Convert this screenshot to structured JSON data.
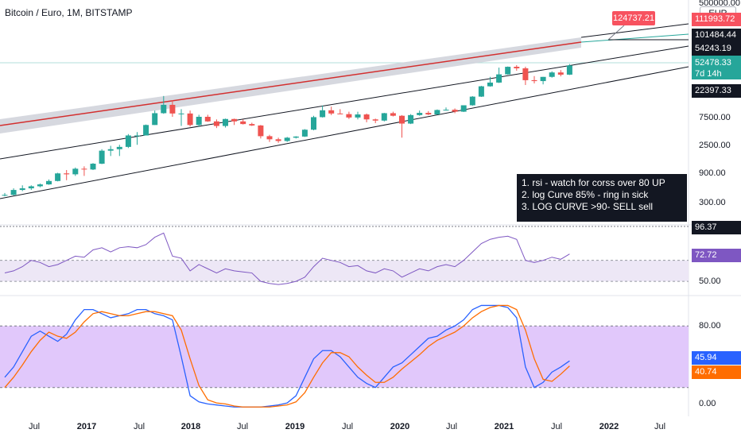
{
  "chart_title": "Bitcoin / Euro, 1M, BITSTAMP",
  "currency": "EUR",
  "colors": {
    "up": "#26a69a",
    "down": "#ef5350",
    "rsi_line": "#7e57c2",
    "rsi_band": "#ede7f6",
    "stoch_k": "#2962ff",
    "stoch_d": "#ff6d00",
    "stoch_band": "#e1c8fb",
    "channel": "#131722",
    "red_curve": "#d32f2f"
  },
  "price_labels": {
    "p1": "111993.72",
    "p2": "101484.44",
    "p3": "54243.19",
    "p4": "52478.33",
    "p4_sub": "7d 14h",
    "p5": "22397.33",
    "callout": "124737.21"
  },
  "axis": {
    "price_ticks": [
      "500000.00",
      "7500.00",
      "2500.00",
      "900.00",
      "300.00"
    ],
    "rsi_ticks": [
      "50.00"
    ],
    "rsi_labels": [
      "96.37",
      "72.72"
    ],
    "stoch_ticks": [
      "80.00",
      "0.00"
    ],
    "stoch_labels": [
      "45.94",
      "40.74"
    ],
    "x_ticks": [
      "Jul",
      "2017",
      "Jul",
      "2018",
      "Jul",
      "2019",
      "Jul",
      "2020",
      "Jul",
      "2021",
      "Jul",
      "2022",
      "Jul"
    ]
  },
  "note": {
    "line1": "1. rsi - watch for corss over 80 UP",
    "line2": "2. log Curve 85% - ring in sick",
    "line3": "3. LOG CURVE >90- SELL sell"
  },
  "chart_data": [
    {
      "type": "candlestick",
      "title": "Bitcoin / Euro, 1M, BITSTAMP",
      "scale": "log",
      "x_categories": [
        "2016-06",
        "2016-07",
        "2016-08",
        "2016-09",
        "2016-10",
        "2016-11",
        "2016-12",
        "2017-01",
        "2017-02",
        "2017-03",
        "2017-04",
        "2017-05",
        "2017-06",
        "2017-07",
        "2017-08",
        "2017-09",
        "2017-10",
        "2017-11",
        "2017-12",
        "2018-01",
        "2018-02",
        "2018-03",
        "2018-04",
        "2018-05",
        "2018-06",
        "2018-07",
        "2018-08",
        "2018-09",
        "2018-10",
        "2018-11",
        "2018-12",
        "2019-01",
        "2019-02",
        "2019-03",
        "2019-04",
        "2019-05",
        "2019-06",
        "2019-07",
        "2019-08",
        "2019-09",
        "2019-10",
        "2019-11",
        "2019-12",
        "2020-01",
        "2020-02",
        "2020-03",
        "2020-04",
        "2020-05",
        "2020-06",
        "2020-07",
        "2020-08",
        "2020-09",
        "2020-10",
        "2020-11",
        "2020-12",
        "2021-01",
        "2021-02",
        "2021-03",
        "2021-04",
        "2021-05",
        "2021-06",
        "2021-07",
        "2021-08",
        "2021-09",
        "2021-10"
      ],
      "open": [
        380,
        390,
        470,
        500,
        540,
        580,
        660,
        880,
        850,
        1050,
        1020,
        1270,
        2080,
        2200,
        2400,
        3700,
        3700,
        5500,
        8600,
        11800,
        8500,
        8500,
        5500,
        7500,
        6300,
        5300,
        6900,
        6300,
        5700,
        5400,
        3600,
        3200,
        3000,
        3400,
        3550,
        4600,
        7400,
        9600,
        8500,
        8300,
        7300,
        8200,
        6800,
        6500,
        8600,
        7800,
        5800,
        8000,
        8700,
        8200,
        9700,
        9800,
        9100,
        11600,
        16100,
        23800,
        27400,
        37400,
        49800,
        47000,
        30000,
        29000,
        34000,
        40200,
        37000
      ],
      "close": [
        390,
        470,
        500,
        540,
        580,
        660,
        880,
        850,
        1050,
        1020,
        1270,
        2080,
        2200,
        2400,
        3700,
        3700,
        5500,
        8600,
        11800,
        8500,
        8500,
        5500,
        7500,
        6300,
        5300,
        6900,
        6300,
        5700,
        5400,
        3600,
        3200,
        3000,
        3400,
        3550,
        4600,
        7400,
        9600,
        8500,
        8300,
        7300,
        8200,
        6800,
        6500,
        8600,
        7800,
        5800,
        8000,
        8700,
        8200,
        9700,
        9800,
        9100,
        11600,
        16100,
        23800,
        27400,
        37400,
        49800,
        47000,
        30000,
        29000,
        34000,
        40200,
        37000,
        52478
      ],
      "high": [
        420,
        500,
        560,
        560,
        600,
        700,
        900,
        1000,
        1100,
        1150,
        1300,
        2200,
        2500,
        2600,
        3900,
        4200,
        5600,
        9500,
        16500,
        14000,
        10000,
        9500,
        8100,
        8100,
        6800,
        7000,
        7000,
        6800,
        6000,
        5500,
        3800,
        3400,
        3500,
        3600,
        4700,
        7800,
        11500,
        11000,
        10000,
        9100,
        9100,
        8500,
        7000,
        8700,
        9100,
        8000,
        8300,
        9500,
        9300,
        9900,
        10700,
        10300,
        11600,
        16400,
        24200,
        34000,
        48300,
        50400,
        53000,
        50000,
        35000,
        34000,
        42000,
        44000,
        55300
      ],
      "low": [
        370,
        380,
        450,
        470,
        520,
        570,
        650,
        680,
        800,
        800,
        1000,
        1250,
        1700,
        1700,
        2300,
        2600,
        3700,
        5500,
        8400,
        7500,
        5300,
        5200,
        5100,
        6200,
        4900,
        5000,
        5500,
        5600,
        5300,
        3300,
        2900,
        2800,
        2900,
        3300,
        3500,
        4500,
        7300,
        8000,
        8300,
        6900,
        6800,
        6100,
        5900,
        6300,
        7600,
        3400,
        5700,
        7800,
        8000,
        8100,
        9500,
        8600,
        9000,
        11400,
        15900,
        23400,
        27000,
        37000,
        43000,
        25000,
        26500,
        25600,
        33000,
        34700,
        36500
      ]
    },
    {
      "type": "line",
      "title": "RSI",
      "ylim": [
        38,
        100
      ],
      "x_categories": "same",
      "series": [
        {
          "name": "RSI",
          "values": [
            58,
            60,
            64,
            70,
            68,
            64,
            66,
            70,
            74,
            73,
            80,
            82,
            78,
            82,
            83,
            82,
            85,
            92,
            96,
            74,
            72,
            60,
            66,
            62,
            58,
            62,
            60,
            59,
            58,
            50,
            48,
            47,
            48,
            50,
            54,
            64,
            72,
            70,
            68,
            64,
            65,
            60,
            58,
            62,
            60,
            54,
            58,
            62,
            60,
            64,
            66,
            64,
            70,
            78,
            86,
            90,
            92,
            93,
            90,
            70,
            68,
            70,
            73,
            71,
            76
          ]
        }
      ],
      "levels": [
        70,
        50
      ]
    },
    {
      "type": "line",
      "title": "Stoch RSI",
      "ylim": [
        -5,
        105
      ],
      "x_categories": "same",
      "series": [
        {
          "name": "K",
          "values": [
            30,
            40,
            55,
            70,
            75,
            70,
            65,
            72,
            86,
            96,
            96,
            92,
            88,
            90,
            92,
            96,
            96,
            92,
            90,
            86,
            50,
            12,
            6,
            4,
            3,
            2,
            1,
            1,
            1,
            1,
            2,
            3,
            5,
            12,
            30,
            48,
            56,
            56,
            50,
            40,
            30,
            24,
            20,
            30,
            40,
            44,
            52,
            60,
            68,
            70,
            76,
            80,
            86,
            96,
            100,
            100,
            100,
            98,
            88,
            40,
            20,
            25,
            35,
            40,
            46
          ]
        },
        {
          "name": "D",
          "values": [
            20,
            30,
            42,
            55,
            66,
            74,
            70,
            68,
            74,
            84,
            92,
            94,
            92,
            90,
            90,
            92,
            94,
            94,
            92,
            90,
            76,
            48,
            22,
            8,
            5,
            4,
            2,
            1,
            1,
            1,
            1,
            2,
            3,
            6,
            15,
            30,
            44,
            54,
            54,
            50,
            40,
            32,
            25,
            25,
            30,
            38,
            45,
            52,
            60,
            66,
            70,
            74,
            80,
            88,
            94,
            98,
            100,
            100,
            96,
            76,
            48,
            28,
            26,
            33,
            41
          ]
        }
      ],
      "levels": [
        80,
        20
      ]
    }
  ]
}
